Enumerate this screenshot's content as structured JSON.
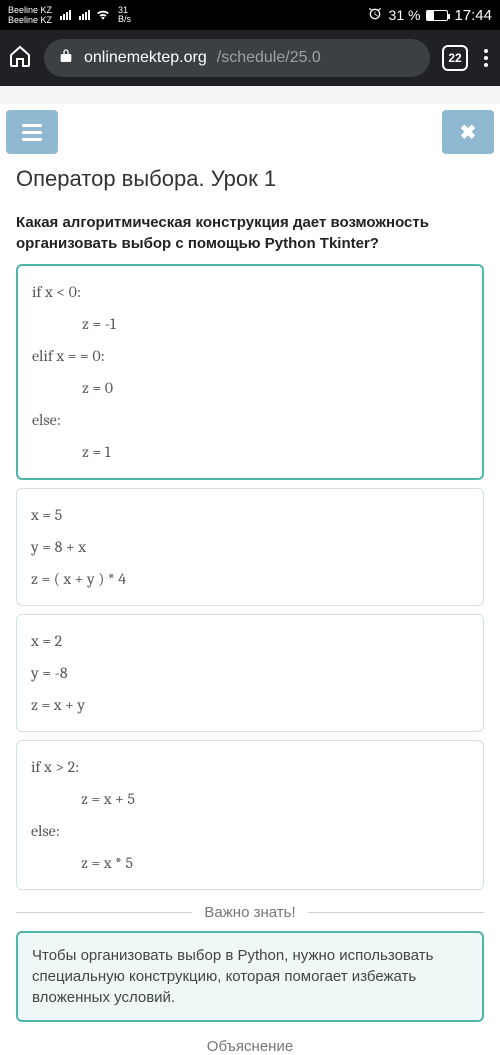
{
  "status": {
    "sim1": "Beeline KZ",
    "sim2": "Beeline KZ",
    "net_speed_top": "31",
    "net_speed_bottom": "B/s",
    "battery_pct": "31 %",
    "time": "17:44"
  },
  "browser": {
    "url_host": "onlinemektep.org",
    "url_path": "/schedule/25.0",
    "tabs_count": "22"
  },
  "lesson": {
    "title": "Оператор выбора. Урок 1",
    "question": "Какая алгоритмическая конструкция дает возможность организовать выбор с помощью Python Tkinter?",
    "answers": [
      {
        "selected": true,
        "lines": [
          {
            "t": "if x < 0:",
            "indent": false
          },
          {
            "t": "z = -1",
            "indent": true
          },
          {
            "t": "elif x = = 0:",
            "indent": false
          },
          {
            "t": "z = 0",
            "indent": true
          },
          {
            "t": "else:",
            "indent": false
          },
          {
            "t": "z = 1",
            "indent": true
          }
        ]
      },
      {
        "selected": false,
        "lines": [
          {
            "t": "x = 5",
            "indent": false
          },
          {
            "t": "y = 8 + x",
            "indent": false
          },
          {
            "t": "z = ( x + y ) * 4",
            "indent": false
          }
        ]
      },
      {
        "selected": false,
        "lines": [
          {
            "t": "x = 2",
            "indent": false
          },
          {
            "t": "y = -8",
            "indent": false
          },
          {
            "t": "z = x + y",
            "indent": false
          }
        ]
      },
      {
        "selected": false,
        "lines": [
          {
            "t": "if x > 2:",
            "indent": false
          },
          {
            "t": "z = x + 5",
            "indent": true
          },
          {
            "t": "else:",
            "indent": false
          },
          {
            "t": "z = x * 5",
            "indent": true
          }
        ]
      }
    ],
    "divider_label": "Важно знать!",
    "note": "Чтобы организовать выбор в Python, нужно использовать специальную конструкцию, которая помогает избежать вложенных условий.",
    "footer_label": "Объяснение"
  },
  "colors": {
    "accent": "#4fb5a8",
    "header_button": "#8fb9d0",
    "browser_bg": "#202124",
    "url_pill": "#3c4043"
  }
}
